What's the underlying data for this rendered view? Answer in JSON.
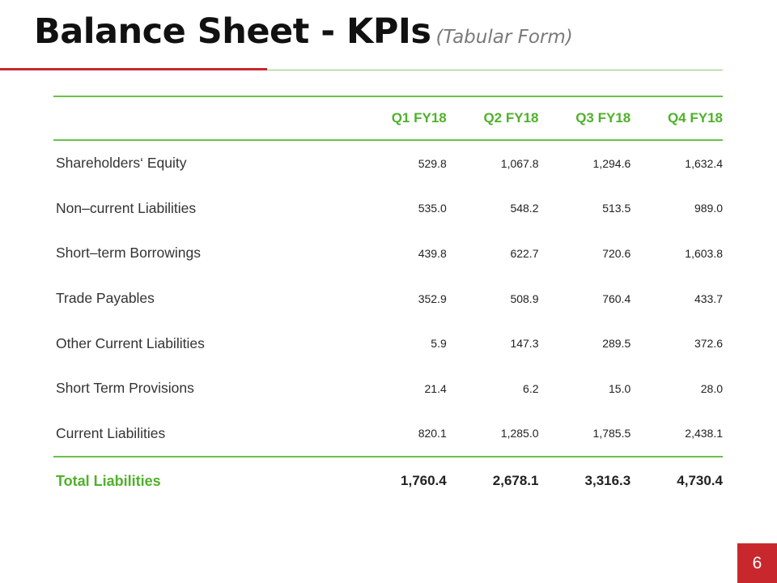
{
  "slide": {
    "title": "Balance Sheet - KPIs",
    "subtitle": "(Tabular Form)",
    "page_number": "6"
  },
  "colors": {
    "accent_red": "#c8282d",
    "accent_green": "#4fb12b"
  },
  "table": {
    "headers": [
      "Q1 FY18",
      "Q2 FY18",
      "Q3 FY18",
      "Q4 FY18"
    ],
    "rows": [
      {
        "label": "Shareholders‘ Equity",
        "values": [
          "529.8",
          "1,067.8",
          "1,294.6",
          "1,632.4"
        ]
      },
      {
        "label": "Non–current Liabilities",
        "values": [
          "535.0",
          "548.2",
          "513.5",
          "989.0"
        ]
      },
      {
        "label": "Short–term Borrowings",
        "values": [
          "439.8",
          "622.7",
          "720.6",
          "1,603.8"
        ]
      },
      {
        "label": "Trade Payables",
        "values": [
          "352.9",
          "508.9",
          "760.4",
          "433.7"
        ]
      },
      {
        "label": "Other Current Liabilities",
        "values": [
          "5.9",
          "147.3",
          "289.5",
          "372.6"
        ]
      },
      {
        "label": "Short Term Provisions",
        "values": [
          "21.4",
          "6.2",
          "15.0",
          "28.0"
        ]
      },
      {
        "label": "Current Liabilities",
        "values": [
          "820.1",
          "1,285.0",
          "1,785.5",
          "2,438.1"
        ]
      }
    ],
    "total": {
      "label": "Total Liabilities",
      "values": [
        "1,760.4",
        "2,678.1",
        "3,316.3",
        "4,730.4"
      ]
    }
  }
}
